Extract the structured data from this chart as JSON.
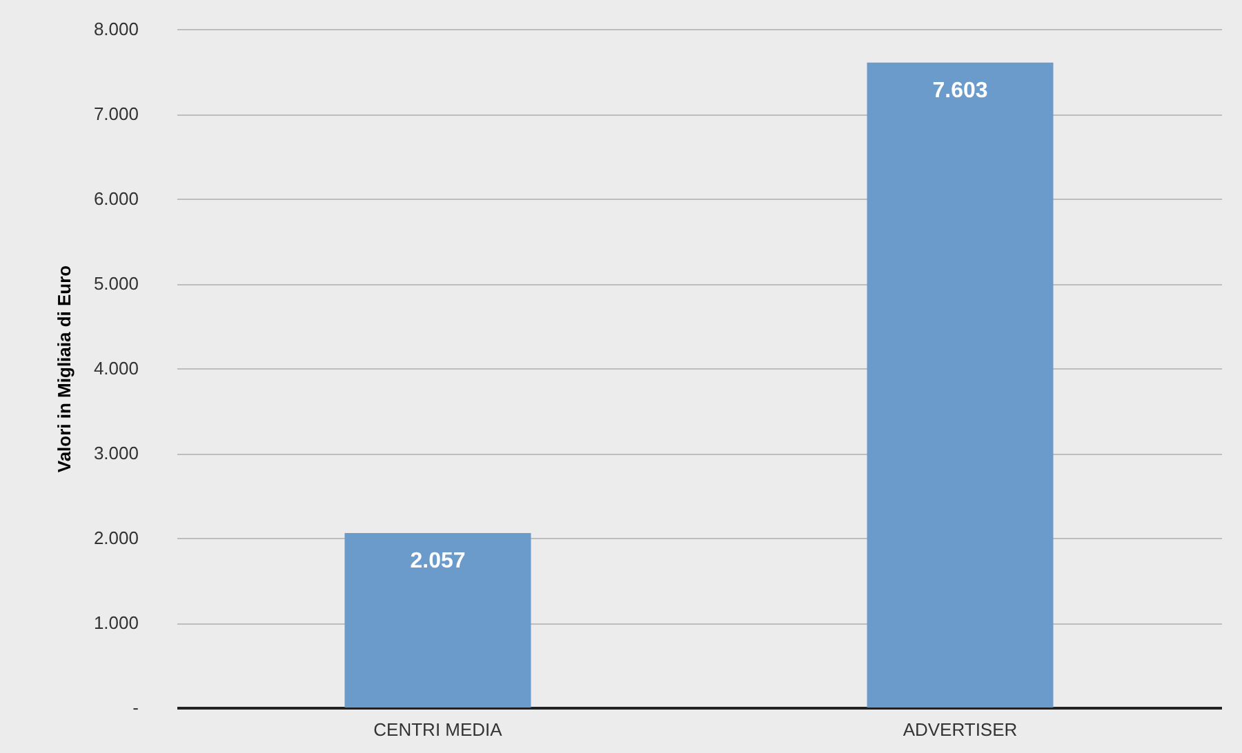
{
  "chart_data": {
    "type": "bar",
    "ylabel": "Valori in Migliaia di Euro",
    "categories": [
      "CENTRI MEDIA",
      "ADVERTISER"
    ],
    "values": [
      2057,
      7603
    ],
    "value_labels": [
      "2.057",
      "7.603"
    ],
    "color": "#6a9bcb",
    "ylim": [
      0,
      8000
    ],
    "yticks": [
      {
        "value": 0,
        "label": "-"
      },
      {
        "value": 1000,
        "label": "1.000"
      },
      {
        "value": 2000,
        "label": "2.000"
      },
      {
        "value": 3000,
        "label": "3.000"
      },
      {
        "value": 4000,
        "label": "4.000"
      },
      {
        "value": 5000,
        "label": "5.000"
      },
      {
        "value": 6000,
        "label": "6.000"
      },
      {
        "value": 7000,
        "label": "7.000"
      },
      {
        "value": 8000,
        "label": "8.000"
      }
    ],
    "grid": "y"
  }
}
